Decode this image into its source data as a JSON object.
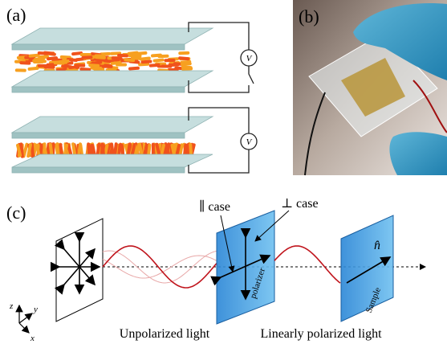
{
  "panel_a": {
    "label": "(a)",
    "voltmeter_top": "V",
    "voltmeter_bottom": "V"
  },
  "panel_b": {
    "label": "(b)"
  },
  "panel_c": {
    "label": "(c)",
    "parallel_case": "∥ case",
    "perpendicular_case": "⊥ case",
    "director": "n̂",
    "polarizer": "polarizer",
    "sample": "Sample",
    "unpolarized": "Unpolarized light",
    "linearly_polarized": "Linearly polarized light",
    "axes": {
      "z": "z⃗",
      "y": "y⃗",
      "x": "x⃗"
    }
  }
}
